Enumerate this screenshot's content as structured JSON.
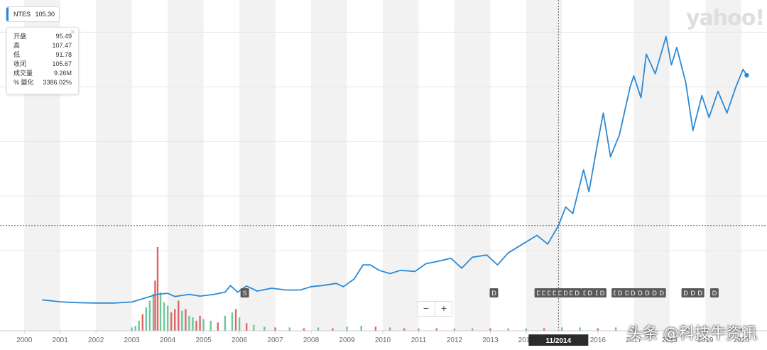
{
  "ticker": {
    "symbol": "NTES",
    "price": "105.30"
  },
  "ohlc": [
    {
      "label": "开盘",
      "value": "95.49"
    },
    {
      "label": "高",
      "value": "107.47"
    },
    {
      "label": "低",
      "value": "91.78"
    },
    {
      "label": "收闭",
      "value": "105.67"
    },
    {
      "label": "成交量",
      "value": "9.26M"
    },
    {
      "label": "% 變化",
      "value": "3386.02%"
    }
  ],
  "logo": "yahoo!",
  "crosshair_label": "11/2014",
  "watermark": "头条 @科技牛资讯",
  "colors": {
    "line": "#2b8ad6",
    "vol_up": "#6cc79a",
    "vol_down": "#e06666",
    "marker_bg": "#5a5a5a"
  },
  "chart_data": {
    "type": "line",
    "title": "",
    "xlabel": "",
    "ylabel": "",
    "x_ticks": [
      "2000",
      "2001",
      "2002",
      "2003",
      "2004",
      "2005",
      "2006",
      "2007",
      "2008",
      "2009",
      "2010",
      "2011",
      "2012",
      "2013",
      "2014",
      "2016",
      "2017",
      "2018",
      "2019",
      "2020"
    ],
    "series": [
      {
        "name": "NTES",
        "points": [
          [
            2000.5,
            2.5
          ],
          [
            2001.0,
            1.6
          ],
          [
            2001.5,
            1.2
          ],
          [
            2002.0,
            1.0
          ],
          [
            2002.5,
            1.0
          ],
          [
            2003.0,
            1.5
          ],
          [
            2003.3,
            3.0
          ],
          [
            2003.7,
            5.0
          ],
          [
            2004.0,
            5.5
          ],
          [
            2004.2,
            4.0
          ],
          [
            2004.6,
            5.0
          ],
          [
            2004.9,
            4.2
          ],
          [
            2005.3,
            5.0
          ],
          [
            2005.6,
            6.0
          ],
          [
            2005.75,
            9.0
          ],
          [
            2005.95,
            6.0
          ],
          [
            2006.2,
            8.8
          ],
          [
            2006.5,
            6.5
          ],
          [
            2006.9,
            7.8
          ],
          [
            2007.3,
            7.0
          ],
          [
            2007.7,
            7.0
          ],
          [
            2008.0,
            8.5
          ],
          [
            2008.3,
            9.0
          ],
          [
            2008.7,
            10.0
          ],
          [
            2008.9,
            8.5
          ],
          [
            2009.2,
            12.0
          ],
          [
            2009.45,
            18.5
          ],
          [
            2009.65,
            18.5
          ],
          [
            2009.9,
            16.0
          ],
          [
            2010.2,
            14.5
          ],
          [
            2010.5,
            16.0
          ],
          [
            2010.9,
            15.5
          ],
          [
            2011.2,
            19.0
          ],
          [
            2011.5,
            20.0
          ],
          [
            2011.9,
            21.5
          ],
          [
            2012.2,
            17.0
          ],
          [
            2012.5,
            22.0
          ],
          [
            2012.9,
            23.0
          ],
          [
            2013.2,
            18.5
          ],
          [
            2013.5,
            24.0
          ],
          [
            2013.9,
            28.0
          ],
          [
            2014.3,
            32.0
          ],
          [
            2014.6,
            28.0
          ],
          [
            2014.9,
            36.5
          ],
          [
            2015.1,
            45.0
          ],
          [
            2015.3,
            42.0
          ],
          [
            2015.6,
            62.0
          ],
          [
            2015.75,
            52.0
          ],
          [
            2016.0,
            75.0
          ],
          [
            2016.15,
            88.0
          ],
          [
            2016.35,
            68.0
          ],
          [
            2016.6,
            78.0
          ],
          [
            2016.9,
            100.0
          ],
          [
            2017.0,
            105.0
          ],
          [
            2017.2,
            95.0
          ],
          [
            2017.35,
            115.0
          ],
          [
            2017.6,
            106.0
          ],
          [
            2017.9,
            123.0
          ],
          [
            2018.05,
            110.0
          ],
          [
            2018.2,
            118.0
          ],
          [
            2018.45,
            102.0
          ],
          [
            2018.65,
            80.0
          ],
          [
            2018.9,
            96.0
          ],
          [
            2019.1,
            86.0
          ],
          [
            2019.35,
            98.0
          ],
          [
            2019.6,
            88.0
          ],
          [
            2019.85,
            100.0
          ],
          [
            2020.05,
            108.0
          ],
          [
            2020.15,
            105.3
          ]
        ]
      }
    ],
    "volume_bars": [
      {
        "x": 2003.0,
        "v": 0.4,
        "dir": "up"
      },
      {
        "x": 2003.1,
        "v": 0.6,
        "dir": "up"
      },
      {
        "x": 2003.2,
        "v": 1.2,
        "dir": "up"
      },
      {
        "x": 2003.3,
        "v": 2.0,
        "dir": "down"
      },
      {
        "x": 2003.4,
        "v": 2.8,
        "dir": "up"
      },
      {
        "x": 2003.5,
        "v": 3.6,
        "dir": "up"
      },
      {
        "x": 2003.6,
        "v": 4.4,
        "dir": "up"
      },
      {
        "x": 2003.65,
        "v": 6.0,
        "dir": "down"
      },
      {
        "x": 2003.72,
        "v": 10.0,
        "dir": "down"
      },
      {
        "x": 2003.8,
        "v": 4.6,
        "dir": "up"
      },
      {
        "x": 2003.9,
        "v": 3.4,
        "dir": "up"
      },
      {
        "x": 2004.0,
        "v": 3.0,
        "dir": "up"
      },
      {
        "x": 2004.1,
        "v": 2.2,
        "dir": "down"
      },
      {
        "x": 2004.2,
        "v": 2.6,
        "dir": "down"
      },
      {
        "x": 2004.3,
        "v": 3.6,
        "dir": "down"
      },
      {
        "x": 2004.4,
        "v": 2.4,
        "dir": "up"
      },
      {
        "x": 2004.5,
        "v": 2.6,
        "dir": "down"
      },
      {
        "x": 2004.6,
        "v": 1.8,
        "dir": "up"
      },
      {
        "x": 2004.7,
        "v": 1.6,
        "dir": "up"
      },
      {
        "x": 2004.8,
        "v": 1.2,
        "dir": "down"
      },
      {
        "x": 2004.9,
        "v": 1.8,
        "dir": "down"
      },
      {
        "x": 2005.0,
        "v": 1.4,
        "dir": "up"
      },
      {
        "x": 2005.2,
        "v": 1.2,
        "dir": "up"
      },
      {
        "x": 2005.4,
        "v": 1.0,
        "dir": "down"
      },
      {
        "x": 2005.6,
        "v": 1.8,
        "dir": "up"
      },
      {
        "x": 2005.8,
        "v": 2.2,
        "dir": "up"
      },
      {
        "x": 2005.9,
        "v": 2.6,
        "dir": "down"
      },
      {
        "x": 2006.0,
        "v": 1.6,
        "dir": "up"
      },
      {
        "x": 2006.2,
        "v": 0.9,
        "dir": "down"
      },
      {
        "x": 2006.4,
        "v": 0.7,
        "dir": "up"
      },
      {
        "x": 2006.7,
        "v": 0.5,
        "dir": "up"
      },
      {
        "x": 2007.0,
        "v": 0.4,
        "dir": "down"
      },
      {
        "x": 2007.4,
        "v": 0.4,
        "dir": "up"
      },
      {
        "x": 2007.8,
        "v": 0.3,
        "dir": "down"
      },
      {
        "x": 2008.2,
        "v": 0.4,
        "dir": "up"
      },
      {
        "x": 2008.6,
        "v": 0.3,
        "dir": "down"
      },
      {
        "x": 2009.0,
        "v": 0.5,
        "dir": "up"
      },
      {
        "x": 2009.4,
        "v": 0.6,
        "dir": "up"
      },
      {
        "x": 2009.8,
        "v": 0.5,
        "dir": "down"
      },
      {
        "x": 2010.2,
        "v": 0.4,
        "dir": "up"
      },
      {
        "x": 2010.6,
        "v": 0.3,
        "dir": "down"
      },
      {
        "x": 2011.0,
        "v": 0.3,
        "dir": "up"
      },
      {
        "x": 2011.5,
        "v": 0.3,
        "dir": "down"
      },
      {
        "x": 2012.0,
        "v": 0.3,
        "dir": "up"
      },
      {
        "x": 2012.5,
        "v": 0.3,
        "dir": "up"
      },
      {
        "x": 2013.0,
        "v": 0.3,
        "dir": "down"
      },
      {
        "x": 2013.5,
        "v": 0.3,
        "dir": "up"
      },
      {
        "x": 2014.0,
        "v": 0.3,
        "dir": "up"
      },
      {
        "x": 2014.5,
        "v": 0.3,
        "dir": "down"
      },
      {
        "x": 2015.0,
        "v": 0.4,
        "dir": "up"
      },
      {
        "x": 2015.5,
        "v": 0.4,
        "dir": "up"
      },
      {
        "x": 2016.0,
        "v": 0.3,
        "dir": "down"
      },
      {
        "x": 2016.5,
        "v": 0.4,
        "dir": "up"
      },
      {
        "x": 2017.0,
        "v": 0.3,
        "dir": "up"
      },
      {
        "x": 2017.5,
        "v": 0.3,
        "dir": "down"
      },
      {
        "x": 2018.0,
        "v": 0.3,
        "dir": "up"
      },
      {
        "x": 2018.5,
        "v": 0.3,
        "dir": "down"
      },
      {
        "x": 2019.0,
        "v": 0.3,
        "dir": "up"
      },
      {
        "x": 2019.5,
        "v": 0.3,
        "dir": "up"
      },
      {
        "x": 2020.0,
        "v": 0.3,
        "dir": "down"
      }
    ],
    "event_markers": [
      {
        "x": 2006.15,
        "label": "S"
      },
      {
        "x": 2013.1,
        "label": "D"
      },
      {
        "x": 2014.35,
        "label": "D"
      },
      {
        "x": 2014.5,
        "label": "D"
      },
      {
        "x": 2014.65,
        "label": "D"
      },
      {
        "x": 2014.8,
        "label": "D"
      },
      {
        "x": 2014.95,
        "label": "D"
      },
      {
        "x": 2015.1,
        "label": "D"
      },
      {
        "x": 2015.27,
        "label": "D"
      },
      {
        "x": 2015.42,
        "label": "D"
      },
      {
        "x": 2015.65,
        "label": "D"
      },
      {
        "x": 2015.78,
        "label": "D"
      },
      {
        "x": 2016.0,
        "label": "D"
      },
      {
        "x": 2016.12,
        "label": "D"
      },
      {
        "x": 2016.5,
        "label": "D"
      },
      {
        "x": 2016.62,
        "label": "D"
      },
      {
        "x": 2016.82,
        "label": "D"
      },
      {
        "x": 2016.98,
        "label": "D"
      },
      {
        "x": 2017.18,
        "label": "D"
      },
      {
        "x": 2017.38,
        "label": "D"
      },
      {
        "x": 2017.58,
        "label": "D"
      },
      {
        "x": 2017.78,
        "label": "D"
      },
      {
        "x": 2018.45,
        "label": "D"
      },
      {
        "x": 2018.65,
        "label": "D"
      },
      {
        "x": 2018.85,
        "label": "D"
      },
      {
        "x": 2019.25,
        "label": "D"
      }
    ],
    "xlim": [
      1999.6,
      2020.4
    ],
    "ylim": [
      0,
      130
    ],
    "grid": true
  }
}
